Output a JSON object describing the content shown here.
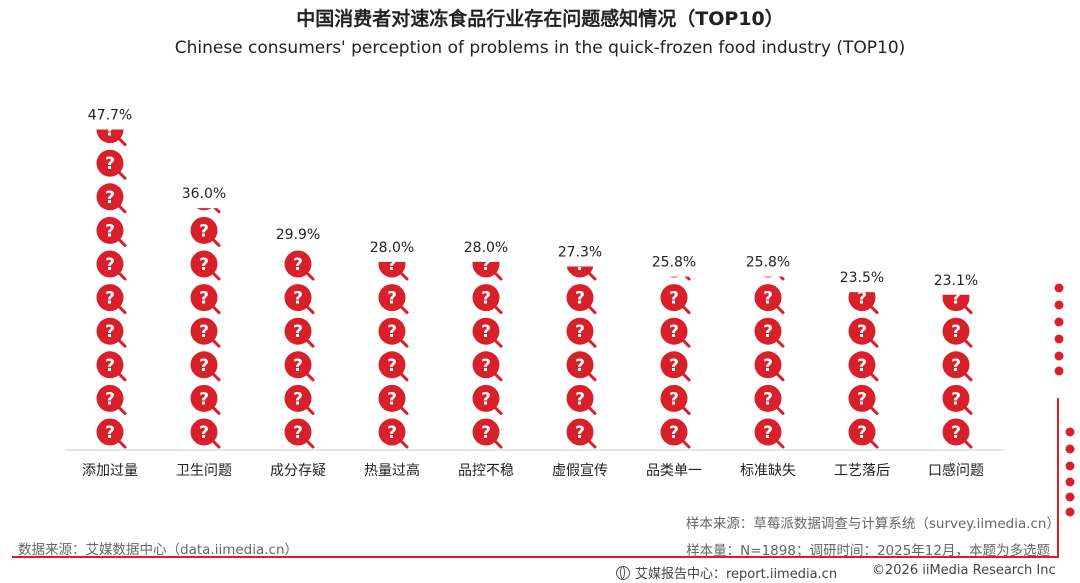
{
  "title": "中国消费者对速冻食品行业存在问题感知情况（TOP10）",
  "subtitle": "Chinese consumers' perception of problems in the quick-frozen food industry (TOP10)",
  "chart_data": {
    "type": "bar",
    "categories": [
      "添加过量",
      "卫生问题",
      "成分存疑",
      "热量过高",
      "品控不稳",
      "虚假宣传",
      "品类单一",
      "标准缺失",
      "工艺落后",
      "口感问题"
    ],
    "values": [
      47.7,
      36.0,
      29.9,
      28.0,
      28.0,
      27.3,
      25.8,
      25.8,
      23.5,
      23.1
    ],
    "value_labels": [
      "47.7%",
      "36.0%",
      "29.9%",
      "28.0%",
      "28.0%",
      "27.3%",
      "25.8%",
      "25.8%",
      "23.5%",
      "23.1%"
    ],
    "unit": "%",
    "ylim": [
      0,
      50
    ],
    "grid": false,
    "legend": "none",
    "mark_icon": "question-magnifier-icon",
    "colors": {
      "mark": "#d8202a",
      "handle": "#d8202a",
      "text": "#222222",
      "axis": "#cccccc"
    }
  },
  "footer": {
    "data_source": "数据来源：艾媒数据中心（data.iimedia.cn）",
    "sample_source": "样本来源：草莓派数据调查与计算系统（survey.iimedia.cn）",
    "sample_info": "样本量：N=1898；调研时间：2025年12月，本题为多选题",
    "brand": "艾媒报告中心：report.iimedia.cn",
    "copyright": "©2026  iiMedia Research  Inc"
  }
}
